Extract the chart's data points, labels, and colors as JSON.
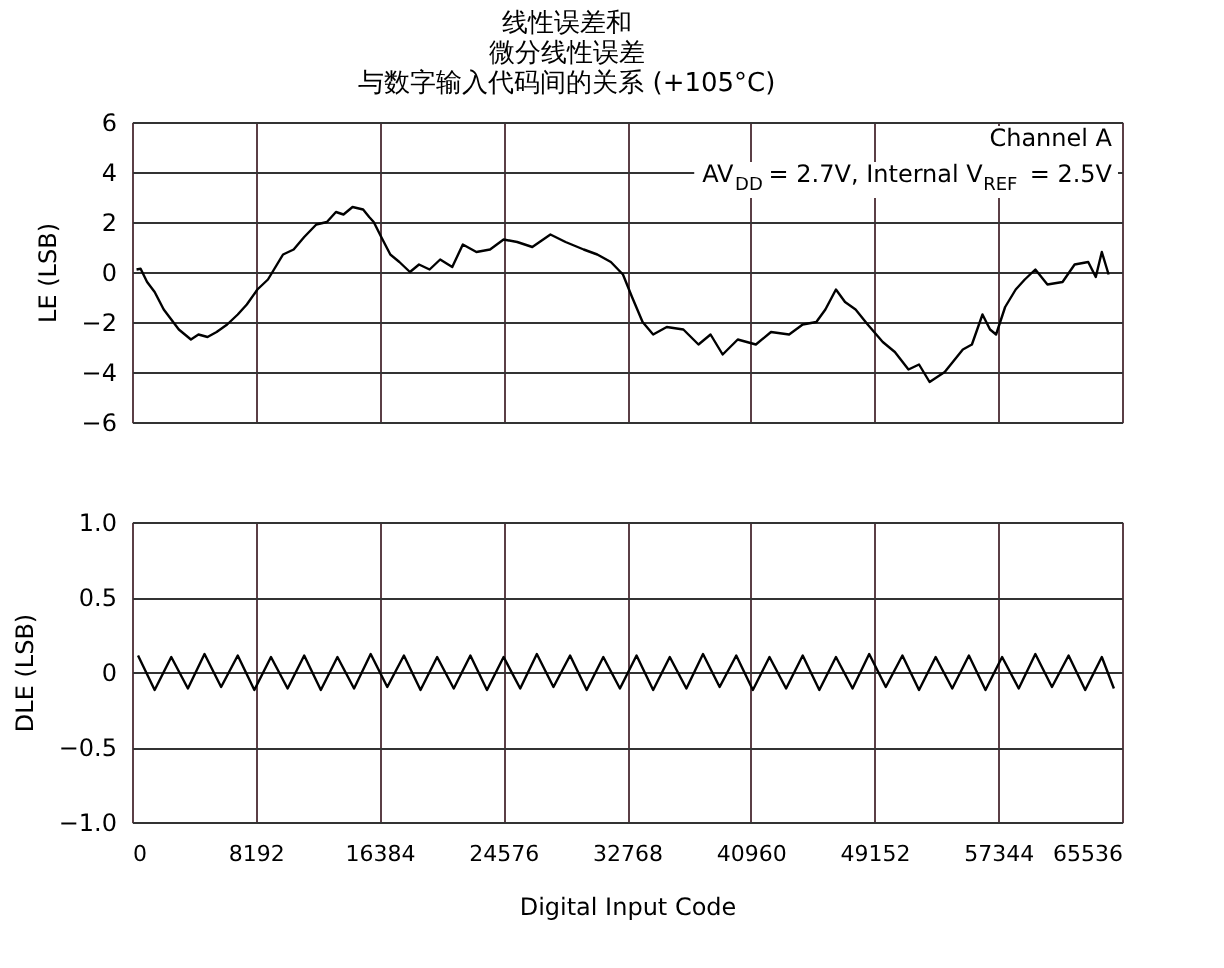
{
  "chart_data": [
    {
      "type": "line",
      "title": "线性误差和微分线性误差",
      "subtitle": "与数字输入代码间的关系 (+105°C)",
      "ylabel": "LE (LSB)",
      "annotations": [
        "Channel A",
        "AV$_{DD}$ = 2.7V, Internal V$_{REF}$ = 2.5V"
      ],
      "series": [
        {
          "color": "#000000",
          "x": [
            300,
            570,
            1000,
            1500,
            2100,
            2600,
            3100,
            3500,
            3900,
            4400,
            5000,
            5600,
            6300,
            7000,
            7600,
            8300,
            9000,
            10000,
            10700,
            11400,
            12200,
            12900,
            13500,
            14000,
            14600,
            15300,
            15700,
            16000,
            16500,
            17100,
            17700,
            18400,
            19000,
            19700,
            20400,
            21200,
            21900,
            22800,
            23700,
            24600,
            25500,
            26500,
            27700,
            28700,
            29900,
            30800,
            31700,
            32500,
            33100,
            33800,
            34500,
            35400,
            36500,
            37500,
            38300,
            39100,
            40100,
            41300,
            42300,
            43500,
            44400,
            45300,
            45900,
            46600,
            47200,
            47900,
            48700,
            49700,
            50500,
            51400,
            52100,
            52800,
            53800,
            55000,
            55600,
            56300,
            56800,
            57200,
            57800,
            58500,
            59100,
            59800,
            60600,
            61600,
            62400,
            63300,
            63800,
            64200,
            64650
          ],
          "values": [
            0.1,
            0.13,
            -0.4,
            -0.8,
            -1.5,
            -1.9,
            -2.3,
            -2.5,
            -2.7,
            -2.5,
            -2.6,
            -2.4,
            -2.1,
            -1.7,
            -1.3,
            -0.7,
            -0.3,
            0.7,
            0.9,
            1.4,
            1.9,
            2.0,
            2.4,
            2.3,
            2.6,
            2.5,
            2.2,
            2.0,
            1.4,
            0.7,
            0.4,
            0,
            0.3,
            0.1,
            0.5,
            0.2,
            1.1,
            0.8,
            0.9,
            1.3,
            1.2,
            1.0,
            1.5,
            1.2,
            0.9,
            0.7,
            0.4,
            -0.1,
            -1.0,
            -2.0,
            -2.5,
            -2.2,
            -2.3,
            -2.9,
            -2.5,
            -3.3,
            -2.7,
            -2.9,
            -2.4,
            -2.5,
            -2.1,
            -2.0,
            -1.5,
            -0.7,
            -1.2,
            -1.5,
            -2.1,
            -2.8,
            -3.2,
            -3.9,
            -3.7,
            -4.4,
            -4.0,
            -3.1,
            -2.9,
            -1.7,
            -2.3,
            -2.5,
            -1.4,
            -0.7,
            -0.3,
            0.1,
            -0.5,
            -0.4,
            0.3,
            0.4,
            -0.2,
            0.8,
            -0.1
          ]
        }
      ],
      "xlim": [
        0,
        65536
      ],
      "xticks": [
        0,
        8192,
        16384,
        24576,
        32768,
        40960,
        49152,
        57344,
        65536
      ],
      "ylim": [
        -6,
        6
      ],
      "yticks": [
        {
          "value": -6,
          "label": "−6"
        },
        {
          "value": -4,
          "label": "−4"
        },
        {
          "value": -2,
          "label": "−2"
        },
        0,
        2,
        4,
        6
      ],
      "grid": true,
      "tick_labels": "y"
    },
    {
      "type": "line",
      "ylabel": "DLE (LSB)",
      "xlabel": "Digital Input Code",
      "series": [
        {
          "color": "#000000",
          "x": [
            400,
            1500,
            2600,
            3700,
            4800,
            5900,
            7000,
            8100,
            9200,
            10300,
            11400,
            12500,
            13600,
            14700,
            15800,
            16900,
            18000,
            19100,
            20200,
            21300,
            22400,
            23500,
            24600,
            25700,
            26800,
            27900,
            29000,
            30100,
            31200,
            32300,
            33400,
            34500,
            35600,
            36700,
            37800,
            38900,
            40000,
            41100,
            42200,
            43300,
            44400,
            45500,
            46600,
            47700,
            48800,
            49900,
            51000,
            52100,
            53200,
            54300,
            55400,
            56500,
            57600,
            58700,
            59800,
            60900,
            62000,
            63100,
            64200,
            65000
          ],
          "values": [
            0.11,
            -0.12,
            0.1,
            -0.11,
            0.12,
            -0.1,
            0.11,
            -0.12,
            0.1,
            -0.11,
            0.11,
            -0.12,
            0.1,
            -0.11,
            0.12,
            -0.1,
            0.11,
            -0.12,
            0.1,
            -0.11,
            0.11,
            -0.12,
            0.1,
            -0.11,
            0.12,
            -0.1,
            0.11,
            -0.12,
            0.1,
            -0.11,
            0.11,
            -0.12,
            0.1,
            -0.11,
            0.12,
            -0.1,
            0.11,
            -0.12,
            0.1,
            -0.11,
            0.11,
            -0.12,
            0.1,
            -0.11,
            0.12,
            -0.1,
            0.11,
            -0.12,
            0.1,
            -0.11,
            0.11,
            -0.12,
            0.1,
            -0.11,
            0.12,
            -0.1,
            0.11,
            -0.12,
            0.1,
            -0.11
          ]
        }
      ],
      "xlim": [
        0,
        65536
      ],
      "xticks": [
        0,
        8192,
        16384,
        24576,
        32768,
        40960,
        49152,
        57344,
        65536
      ],
      "ylim": [
        -1,
        1
      ],
      "yticks": [
        {
          "value": -1,
          "label": "−1.0"
        },
        {
          "value": -0.5,
          "label": "−0.5"
        },
        0,
        0.5,
        {
          "value": 1,
          "label": "1.0"
        }
      ],
      "grid": true
    }
  ]
}
